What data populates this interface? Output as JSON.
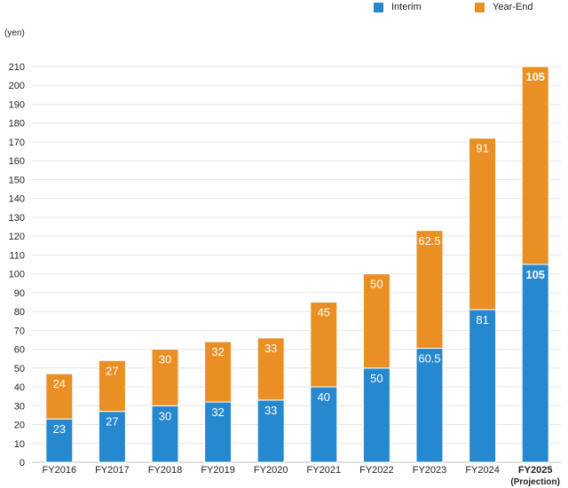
{
  "chart_data": {
    "type": "bar",
    "stacked": true,
    "y_unit": "(yen)",
    "categories": [
      "FY2016",
      "FY2017",
      "FY2018",
      "FY2019",
      "FY2020",
      "FY2021",
      "FY2022",
      "FY2023",
      "FY2024",
      "FY2025"
    ],
    "category_sublabels": [
      "",
      "",
      "",
      "",
      "",
      "",
      "",
      "",
      "",
      "(Projection)"
    ],
    "emphasized_category": "FY2025",
    "series": [
      {
        "name": "Interim",
        "color": "#2688ce",
        "values": [
          23,
          27,
          30,
          32,
          33,
          40,
          50,
          60.5,
          81,
          105
        ]
      },
      {
        "name": "Year-End",
        "color": "#e98f24",
        "values": [
          24,
          27,
          30,
          32,
          33,
          45,
          50,
          62.5,
          91,
          105
        ]
      }
    ],
    "ylim": [
      0,
      210
    ],
    "yticks": [
      0,
      10,
      20,
      30,
      40,
      50,
      60,
      70,
      80,
      90,
      100,
      110,
      120,
      130,
      140,
      150,
      160,
      170,
      180,
      190,
      200,
      210
    ],
    "grid": true,
    "legend": "top-right"
  }
}
